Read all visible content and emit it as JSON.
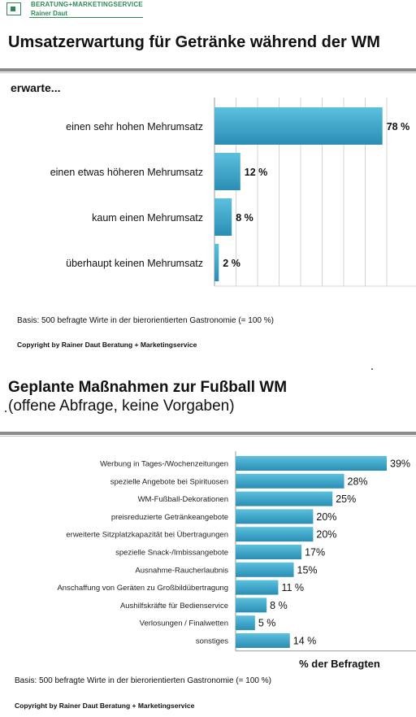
{
  "logo": {
    "line1": "BERATUNG+MARKETINGSERVICE",
    "line2": "Rainer Daut"
  },
  "colors": {
    "bar_top": "#5cc0de",
    "bar_bottom": "#2a8db4",
    "logo_green": "#2f8a57"
  },
  "chart_data": [
    {
      "type": "bar",
      "orientation": "horizontal",
      "title": "Umsatzerwartung für Getränke während der WM",
      "subtitle": "erwarte...",
      "categories": [
        "einen sehr hohen Mehrumsatz",
        "einen etwas höheren Mehrumsatz",
        "kaum einen Mehrumsatz",
        "überhaupt keinen Mehrumsatz"
      ],
      "values": [
        78,
        12,
        8,
        2
      ],
      "data_labels": [
        "78 %",
        "12 %",
        "8 %",
        "2 %"
      ],
      "xlim": [
        0,
        80
      ],
      "grid": true,
      "footnote": "Basis: 500 befragte Wirte in der bierorientierten Gastronomie (= 100 %)",
      "copyright": "Copyright by Rainer Daut Beratung + Marketingservice"
    },
    {
      "type": "bar",
      "orientation": "horizontal",
      "title": "Geplante Maßnahmen zur Fußball WM",
      "subtitle": "(offene Abfrage, keine Vorgaben)",
      "categories": [
        "Werbung in Tages-/Wochenzeitungen",
        "spezielle Angebote bei Spirituosen",
        "WM-Fußball-Dekorationen",
        "preisreduzierte Getränkeangebote",
        "erweiterte Sitzplatzkapazität bei Übertragungen",
        "spezielle Snack-/Imbissangebote",
        "Ausnahme-Raucherlaubnis",
        "Anschaffung von Geräten zu Großbildübertragung",
        "Aushilfskräfte für Bedienservice",
        "Verlosungen / Finalwetten",
        "sonstiges"
      ],
      "values": [
        39,
        28,
        25,
        20,
        20,
        17,
        15,
        11,
        8,
        5,
        14
      ],
      "data_labels": [
        "39%",
        "28%",
        "25%",
        "20%",
        "20%",
        "17%",
        "15%",
        "11 %",
        "8 %",
        "5 %",
        "14 %"
      ],
      "xlabel": "% der Befragten",
      "xlim": [
        0,
        39
      ],
      "grid": false,
      "footnote": "Basis: 500 befragte Wirte in der bierorientierten Gastronomie (= 100 %)",
      "copyright": "Copyright by Rainer Daut Beratung + Marketingservice"
    }
  ]
}
